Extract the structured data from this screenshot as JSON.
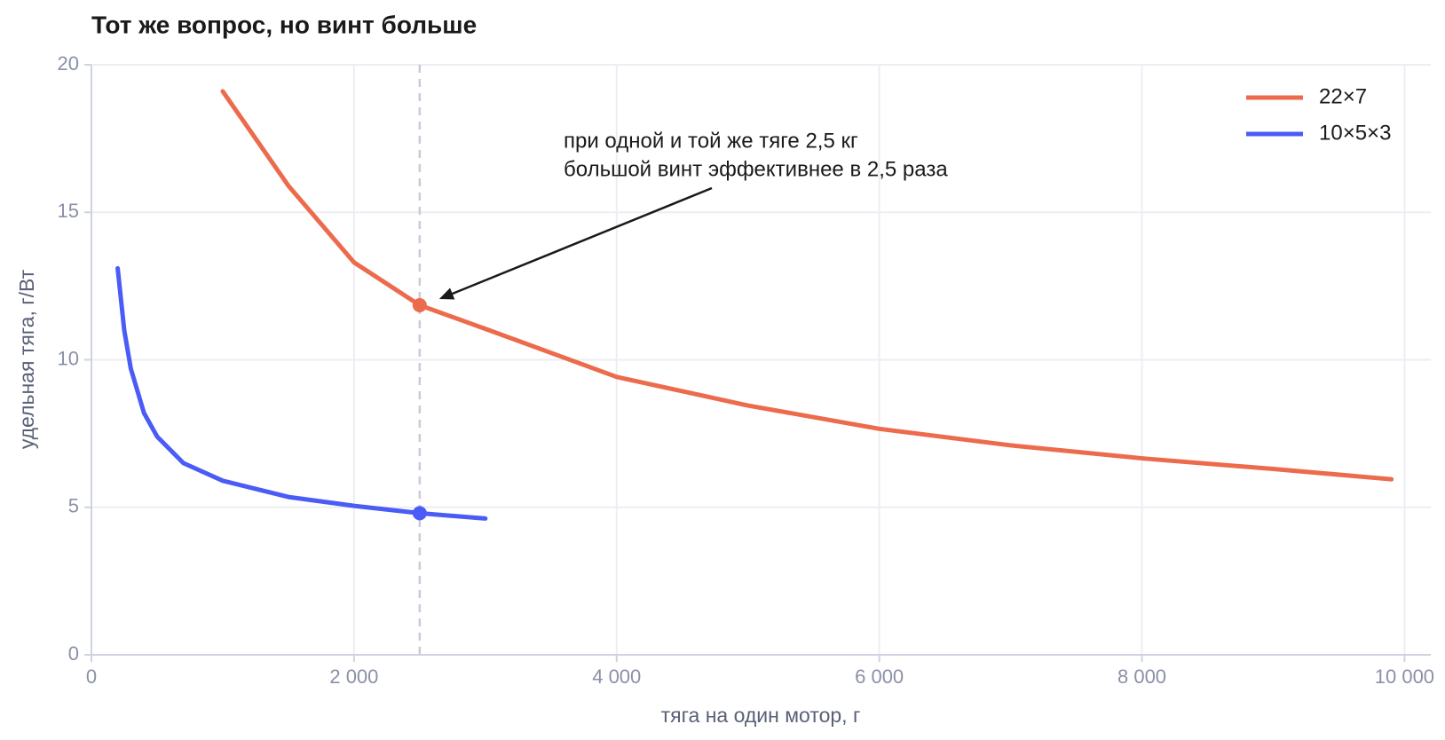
{
  "chart_data": {
    "type": "line",
    "title": "Тот же вопрос, но винт больше",
    "x_label": "тяга на один мотор, г",
    "y_label": "удельная тяга, г/Вт",
    "xlim": [
      0,
      10200
    ],
    "ylim": [
      0,
      20
    ],
    "xticks": [
      0,
      {
        "value": 2000,
        "label": "2 000"
      },
      {
        "value": 4000,
        "label": "4 000"
      },
      {
        "value": 6000,
        "label": "6 000"
      },
      {
        "value": 8000,
        "label": "8 000"
      },
      {
        "value": 10000,
        "label": "10 000"
      }
    ],
    "yticks": [
      0,
      5,
      10,
      15,
      20
    ],
    "grid": true,
    "legend": "top-right",
    "vline": 2500,
    "series": [
      {
        "name": "22×7",
        "color": "#ec6b4c",
        "x": [
          1000,
          1500,
          2000,
          2500,
          3000,
          4000,
          5000,
          6000,
          7000,
          8000,
          9000,
          9900
        ],
        "values": [
          19.1,
          15.9,
          13.3,
          11.85,
          11.05,
          9.42,
          8.45,
          7.66,
          7.1,
          6.66,
          6.3,
          5.95
        ]
      },
      {
        "name": "10×5×3",
        "color": "#4a5cf5",
        "x": [
          200,
          250,
          300,
          400,
          500,
          700,
          1000,
          1500,
          2000,
          2500,
          3000
        ],
        "values": [
          13.1,
          11.0,
          9.7,
          8.2,
          7.4,
          6.5,
          5.9,
          5.35,
          5.05,
          4.8,
          4.62
        ]
      }
    ],
    "annotation": {
      "lines": [
        "при одной и той же тяге 2,5 кг",
        "большой винт эффективнее в 2,5 раза"
      ],
      "x": 2500,
      "y": 11.85
    }
  }
}
